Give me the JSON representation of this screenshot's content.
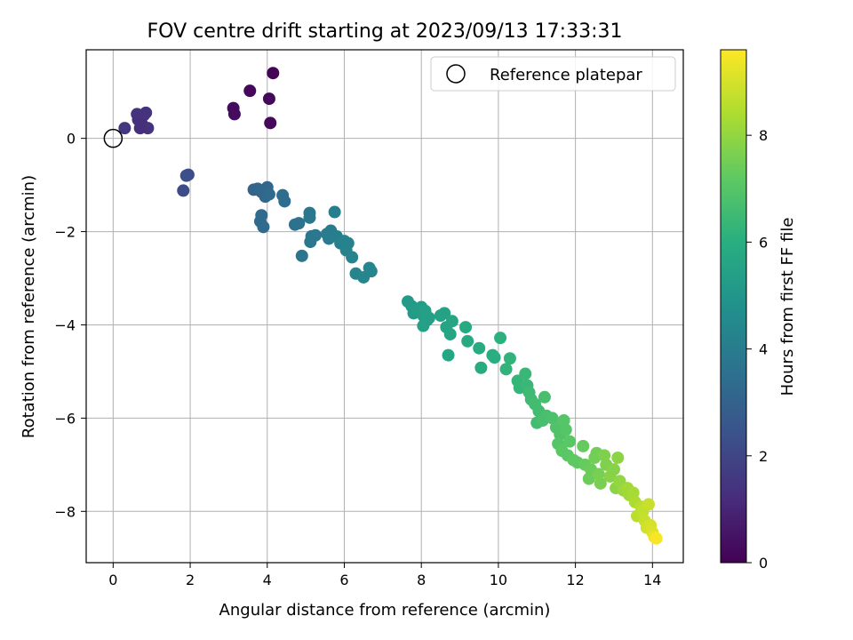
{
  "chart_data": {
    "type": "scatter",
    "title": "FOV centre drift starting at 2023/09/13 17:33:31",
    "xlabel": "Angular distance from reference (arcmin)",
    "ylabel": "Rotation from reference (arcmin)",
    "xlim": [
      -0.7,
      14.8
    ],
    "ylim": [
      -9.1,
      1.9
    ],
    "x_ticks": [
      0,
      2,
      4,
      6,
      8,
      10,
      12,
      14
    ],
    "x_tick_labels": [
      "0",
      "2",
      "4",
      "6",
      "8",
      "10",
      "12",
      "14"
    ],
    "y_ticks": [
      0,
      -2,
      -4,
      -6,
      -8
    ],
    "y_tick_labels": [
      "0",
      "−2",
      "−4",
      "−6",
      "−8"
    ],
    "grid": true,
    "legend": {
      "position": "top-right",
      "entries": [
        "Reference platepar"
      ]
    },
    "reference_point": {
      "x": 0,
      "y": 0
    },
    "colorbar": {
      "label": "Hours from first FF file",
      "colormap": "viridis",
      "range": [
        0,
        9.6
      ],
      "ticks": [
        0,
        2,
        4,
        6,
        8
      ],
      "tick_labels": [
        "0",
        "2",
        "4",
        "6",
        "8"
      ]
    },
    "points": [
      {
        "x": 4.15,
        "y": 1.4,
        "c": 0.1
      },
      {
        "x": 3.55,
        "y": 1.02,
        "c": 0.2
      },
      {
        "x": 4.05,
        "y": 0.85,
        "c": 0.2
      },
      {
        "x": 4.08,
        "y": 0.33,
        "c": 0.2
      },
      {
        "x": 3.12,
        "y": 0.65,
        "c": 0.3
      },
      {
        "x": 3.15,
        "y": 0.52,
        "c": 0.3
      },
      {
        "x": 0.7,
        "y": 0.48,
        "c": 1.2
      },
      {
        "x": 0.8,
        "y": 0.5,
        "c": 1.3
      },
      {
        "x": 0.65,
        "y": 0.4,
        "c": 1.3
      },
      {
        "x": 0.85,
        "y": 0.55,
        "c": 1.4
      },
      {
        "x": 0.75,
        "y": 0.3,
        "c": 1.3
      },
      {
        "x": 0.9,
        "y": 0.22,
        "c": 1.4
      },
      {
        "x": 0.7,
        "y": 0.22,
        "c": 1.3
      },
      {
        "x": 0.3,
        "y": 0.22,
        "c": 1.5
      },
      {
        "x": 0.62,
        "y": 0.52,
        "c": 1.4
      },
      {
        "x": 1.95,
        "y": -0.78,
        "c": 2.2
      },
      {
        "x": 1.9,
        "y": -0.8,
        "c": 2.3
      },
      {
        "x": 1.82,
        "y": -1.12,
        "c": 2.2
      },
      {
        "x": 3.65,
        "y": -1.1,
        "c": 3.1
      },
      {
        "x": 3.75,
        "y": -1.08,
        "c": 3.1
      },
      {
        "x": 3.85,
        "y": -1.15,
        "c": 3.2
      },
      {
        "x": 4.0,
        "y": -1.05,
        "c": 3.2
      },
      {
        "x": 3.95,
        "y": -1.25,
        "c": 3.2
      },
      {
        "x": 4.05,
        "y": -1.2,
        "c": 3.3
      },
      {
        "x": 4.4,
        "y": -1.22,
        "c": 3.4
      },
      {
        "x": 4.45,
        "y": -1.35,
        "c": 3.4
      },
      {
        "x": 3.85,
        "y": -1.65,
        "c": 3.3
      },
      {
        "x": 3.82,
        "y": -1.78,
        "c": 3.3
      },
      {
        "x": 3.9,
        "y": -1.9,
        "c": 3.3
      },
      {
        "x": 4.72,
        "y": -1.85,
        "c": 3.6
      },
      {
        "x": 4.82,
        "y": -1.82,
        "c": 3.6
      },
      {
        "x": 4.9,
        "y": -2.52,
        "c": 3.7
      },
      {
        "x": 5.1,
        "y": -1.6,
        "c": 3.8
      },
      {
        "x": 5.1,
        "y": -1.7,
        "c": 3.8
      },
      {
        "x": 5.15,
        "y": -2.1,
        "c": 3.8
      },
      {
        "x": 5.25,
        "y": -2.08,
        "c": 3.8
      },
      {
        "x": 5.12,
        "y": -2.22,
        "c": 3.8
      },
      {
        "x": 5.55,
        "y": -2.05,
        "c": 4.0
      },
      {
        "x": 5.65,
        "y": -1.98,
        "c": 4.0
      },
      {
        "x": 5.6,
        "y": -2.15,
        "c": 4.0
      },
      {
        "x": 5.75,
        "y": -1.58,
        "c": 4.1
      },
      {
        "x": 5.8,
        "y": -2.1,
        "c": 4.1
      },
      {
        "x": 5.9,
        "y": -2.25,
        "c": 4.1
      },
      {
        "x": 6.0,
        "y": -2.2,
        "c": 4.2
      },
      {
        "x": 6.1,
        "y": -2.25,
        "c": 4.2
      },
      {
        "x": 6.05,
        "y": -2.4,
        "c": 4.2
      },
      {
        "x": 6.2,
        "y": -2.55,
        "c": 4.3
      },
      {
        "x": 6.3,
        "y": -2.9,
        "c": 4.3
      },
      {
        "x": 6.5,
        "y": -2.98,
        "c": 4.4
      },
      {
        "x": 6.65,
        "y": -2.78,
        "c": 4.4
      },
      {
        "x": 6.7,
        "y": -2.85,
        "c": 4.4
      },
      {
        "x": 7.65,
        "y": -3.5,
        "c": 5.2
      },
      {
        "x": 7.75,
        "y": -3.6,
        "c": 5.2
      },
      {
        "x": 7.8,
        "y": -3.75,
        "c": 5.2
      },
      {
        "x": 7.9,
        "y": -3.68,
        "c": 5.3
      },
      {
        "x": 8.0,
        "y": -3.62,
        "c": 5.3
      },
      {
        "x": 8.05,
        "y": -3.8,
        "c": 5.3
      },
      {
        "x": 8.1,
        "y": -3.7,
        "c": 5.4
      },
      {
        "x": 8.15,
        "y": -3.9,
        "c": 5.4
      },
      {
        "x": 8.2,
        "y": -3.85,
        "c": 5.4
      },
      {
        "x": 8.05,
        "y": -4.02,
        "c": 5.4
      },
      {
        "x": 8.5,
        "y": -3.8,
        "c": 5.5
      },
      {
        "x": 8.6,
        "y": -3.75,
        "c": 5.5
      },
      {
        "x": 8.65,
        "y": -4.05,
        "c": 5.6
      },
      {
        "x": 8.75,
        "y": -4.2,
        "c": 5.6
      },
      {
        "x": 8.8,
        "y": -3.92,
        "c": 5.6
      },
      {
        "x": 8.7,
        "y": -4.65,
        "c": 5.7
      },
      {
        "x": 9.15,
        "y": -4.05,
        "c": 5.8
      },
      {
        "x": 9.2,
        "y": -4.35,
        "c": 5.8
      },
      {
        "x": 9.5,
        "y": -4.5,
        "c": 5.9
      },
      {
        "x": 9.55,
        "y": -4.92,
        "c": 5.9
      },
      {
        "x": 9.85,
        "y": -4.65,
        "c": 6.0
      },
      {
        "x": 9.9,
        "y": -4.7,
        "c": 6.0
      },
      {
        "x": 10.05,
        "y": -4.28,
        "c": 6.1
      },
      {
        "x": 10.2,
        "y": -4.95,
        "c": 6.2
      },
      {
        "x": 10.3,
        "y": -4.72,
        "c": 6.2
      },
      {
        "x": 10.5,
        "y": -5.2,
        "c": 6.3
      },
      {
        "x": 10.55,
        "y": -5.35,
        "c": 6.3
      },
      {
        "x": 10.7,
        "y": -5.05,
        "c": 6.4
      },
      {
        "x": 10.75,
        "y": -5.3,
        "c": 6.4
      },
      {
        "x": 10.8,
        "y": -5.45,
        "c": 6.5
      },
      {
        "x": 10.85,
        "y": -5.6,
        "c": 6.5
      },
      {
        "x": 10.95,
        "y": -5.7,
        "c": 6.6
      },
      {
        "x": 11.05,
        "y": -5.85,
        "c": 6.6
      },
      {
        "x": 11.2,
        "y": -5.55,
        "c": 6.7
      },
      {
        "x": 11.25,
        "y": -5.95,
        "c": 6.7
      },
      {
        "x": 11.0,
        "y": -6.1,
        "c": 6.6
      },
      {
        "x": 11.15,
        "y": -6.05,
        "c": 6.7
      },
      {
        "x": 11.4,
        "y": -6.0,
        "c": 6.8
      },
      {
        "x": 11.5,
        "y": -6.2,
        "c": 6.9
      },
      {
        "x": 11.6,
        "y": -6.35,
        "c": 6.9
      },
      {
        "x": 11.7,
        "y": -6.05,
        "c": 7.0
      },
      {
        "x": 11.75,
        "y": -6.25,
        "c": 7.0
      },
      {
        "x": 11.55,
        "y": -6.55,
        "c": 7.0
      },
      {
        "x": 11.65,
        "y": -6.7,
        "c": 7.1
      },
      {
        "x": 11.85,
        "y": -6.5,
        "c": 7.1
      },
      {
        "x": 11.8,
        "y": -6.8,
        "c": 7.1
      },
      {
        "x": 11.95,
        "y": -6.9,
        "c": 7.2
      },
      {
        "x": 12.05,
        "y": -6.95,
        "c": 7.2
      },
      {
        "x": 12.2,
        "y": -6.6,
        "c": 7.3
      },
      {
        "x": 12.25,
        "y": -7.0,
        "c": 7.3
      },
      {
        "x": 12.4,
        "y": -7.1,
        "c": 7.4
      },
      {
        "x": 12.35,
        "y": -7.3,
        "c": 7.4
      },
      {
        "x": 12.5,
        "y": -6.85,
        "c": 7.5
      },
      {
        "x": 12.55,
        "y": -6.75,
        "c": 7.5
      },
      {
        "x": 12.6,
        "y": -7.2,
        "c": 7.6
      },
      {
        "x": 12.65,
        "y": -7.4,
        "c": 7.6
      },
      {
        "x": 12.75,
        "y": -6.8,
        "c": 7.7
      },
      {
        "x": 12.8,
        "y": -7.0,
        "c": 7.7
      },
      {
        "x": 12.9,
        "y": -7.25,
        "c": 7.8
      },
      {
        "x": 13.0,
        "y": -7.1,
        "c": 7.8
      },
      {
        "x": 13.1,
        "y": -6.85,
        "c": 7.9
      },
      {
        "x": 13.05,
        "y": -7.5,
        "c": 7.9
      },
      {
        "x": 13.15,
        "y": -7.35,
        "c": 8.0
      },
      {
        "x": 13.25,
        "y": -7.55,
        "c": 8.1
      },
      {
        "x": 13.35,
        "y": -7.5,
        "c": 8.2
      },
      {
        "x": 13.4,
        "y": -7.65,
        "c": 8.2
      },
      {
        "x": 13.5,
        "y": -7.6,
        "c": 8.3
      },
      {
        "x": 13.55,
        "y": -7.8,
        "c": 8.4
      },
      {
        "x": 13.6,
        "y": -8.1,
        "c": 8.6
      },
      {
        "x": 13.7,
        "y": -7.9,
        "c": 8.6
      },
      {
        "x": 13.75,
        "y": -8.0,
        "c": 8.7
      },
      {
        "x": 13.8,
        "y": -8.2,
        "c": 8.8
      },
      {
        "x": 13.85,
        "y": -8.35,
        "c": 8.9
      },
      {
        "x": 13.9,
        "y": -7.85,
        "c": 8.8
      },
      {
        "x": 13.95,
        "y": -8.3,
        "c": 9.0
      },
      {
        "x": 14.0,
        "y": -8.45,
        "c": 9.1
      },
      {
        "x": 14.05,
        "y": -8.55,
        "c": 9.3
      },
      {
        "x": 14.1,
        "y": -8.58,
        "c": 9.5
      }
    ]
  }
}
